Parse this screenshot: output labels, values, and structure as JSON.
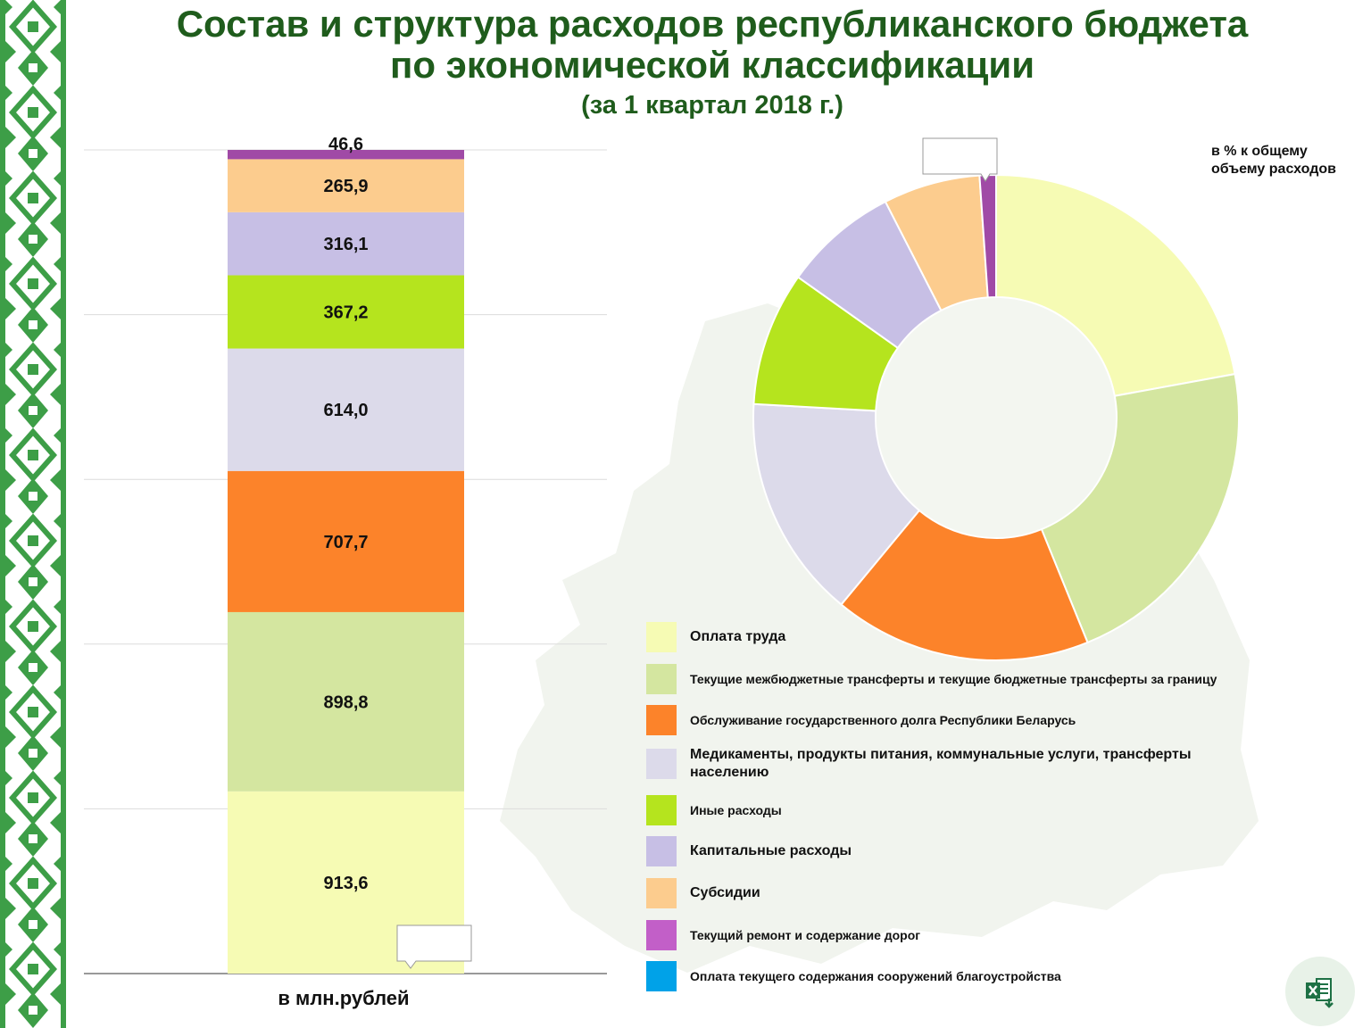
{
  "title": "Состав и структура расходов республиканского бюджета",
  "title_line2": "по экономической классификации",
  "subtitle": "(за 1 квартал 2018 г.)",
  "unit_label": "в млн.рублей",
  "pie_note": "в % к общему объему расходов",
  "colors": {
    "title": "#1f5c1c",
    "ornament": "#3d9e47"
  },
  "chart_data": [
    {
      "type": "bar",
      "stacked": true,
      "unit": "в млн.рублей",
      "categories": [
        "Оплата труда",
        "Текущие межбюджетные трансферты и текущие бюджетные трансферты за границу",
        "Обслуживание государственного долга Республики Беларусь",
        "Медикаменты, продукты питания, коммунальные услуги, трансферты населению",
        "Иные расходы",
        "Капитальные расходы",
        "Субсидии",
        "Текущий ремонт и содержание дорог",
        "Оплата текущего содержания сооружений благоустройства"
      ],
      "values": [
        913.6,
        898.8,
        707.7,
        614.0,
        367.2,
        316.1,
        265.9,
        46.6,
        null
      ],
      "value_labels": [
        "913,6",
        "898,8",
        "707,7",
        "614,0",
        "367,2",
        "316,1",
        "265,9",
        "46,6",
        ""
      ],
      "colors": [
        "#f6fbb4",
        "#d4e6a0",
        "#fc832a",
        "#dcdaea",
        "#b5e41e",
        "#c7bfe5",
        "#fccc8e",
        "#a04aa6",
        "#00a2e8"
      ],
      "grid": true
    },
    {
      "type": "pie",
      "donut": true,
      "note": "в % к общему объему расходов",
      "categories": [
        "Оплата труда",
        "Текущие межбюджетные трансферты и текущие бюджетные трансферты за границу",
        "Обслуживание государственного долга Республики Беларусь",
        "Медикаменты, продукты питания, коммунальные услуги, трансферты населению",
        "Иные расходы",
        "Капитальные расходы",
        "Субсидии",
        "Текущий ремонт и содержание дорог",
        "Оплата текущего содержания сооружений благоустройства"
      ],
      "values": [
        22.3,
        21.9,
        17.3,
        15.0,
        9.0,
        7.7,
        6.5,
        1.1,
        null
      ],
      "colors": [
        "#f6fbb4",
        "#d4e6a0",
        "#fc832a",
        "#dcdaea",
        "#b5e41e",
        "#c7bfe5",
        "#fccc8e",
        "#a04aa6",
        "#00a2e8"
      ]
    }
  ],
  "legend": [
    {
      "label": "Оплата труда",
      "color": "#f6fbb4",
      "size": 16
    },
    {
      "label": "Текущие межбюджетные трансферты и текущие бюджетные трансферты за границу",
      "color": "#d4e6a0",
      "size": 14
    },
    {
      "label": "Обслуживание государственного долга Республики Беларусь",
      "color": "#fc832a",
      "size": 14
    },
    {
      "label": "Медикаменты, продукты питания, коммунальные услуги, трансферты населению",
      "color": "#dcdaea",
      "size": 16
    },
    {
      "label": "Иные расходы",
      "color": "#b5e41e",
      "size": 14
    },
    {
      "label": "Капитальные расходы",
      "color": "#c7bfe5",
      "size": 16
    },
    {
      "label": "Субсидии",
      "color": "#fccc8e",
      "size": 16
    },
    {
      "label": "Текущий ремонт и содержание дорог",
      "color": "#c25fc8",
      "size": 14
    },
    {
      "label": "Оплата текущего содержания сооружений благоустройства",
      "color": "#00a2e8",
      "size": 14
    }
  ],
  "excel_icon": "excel-download-icon"
}
